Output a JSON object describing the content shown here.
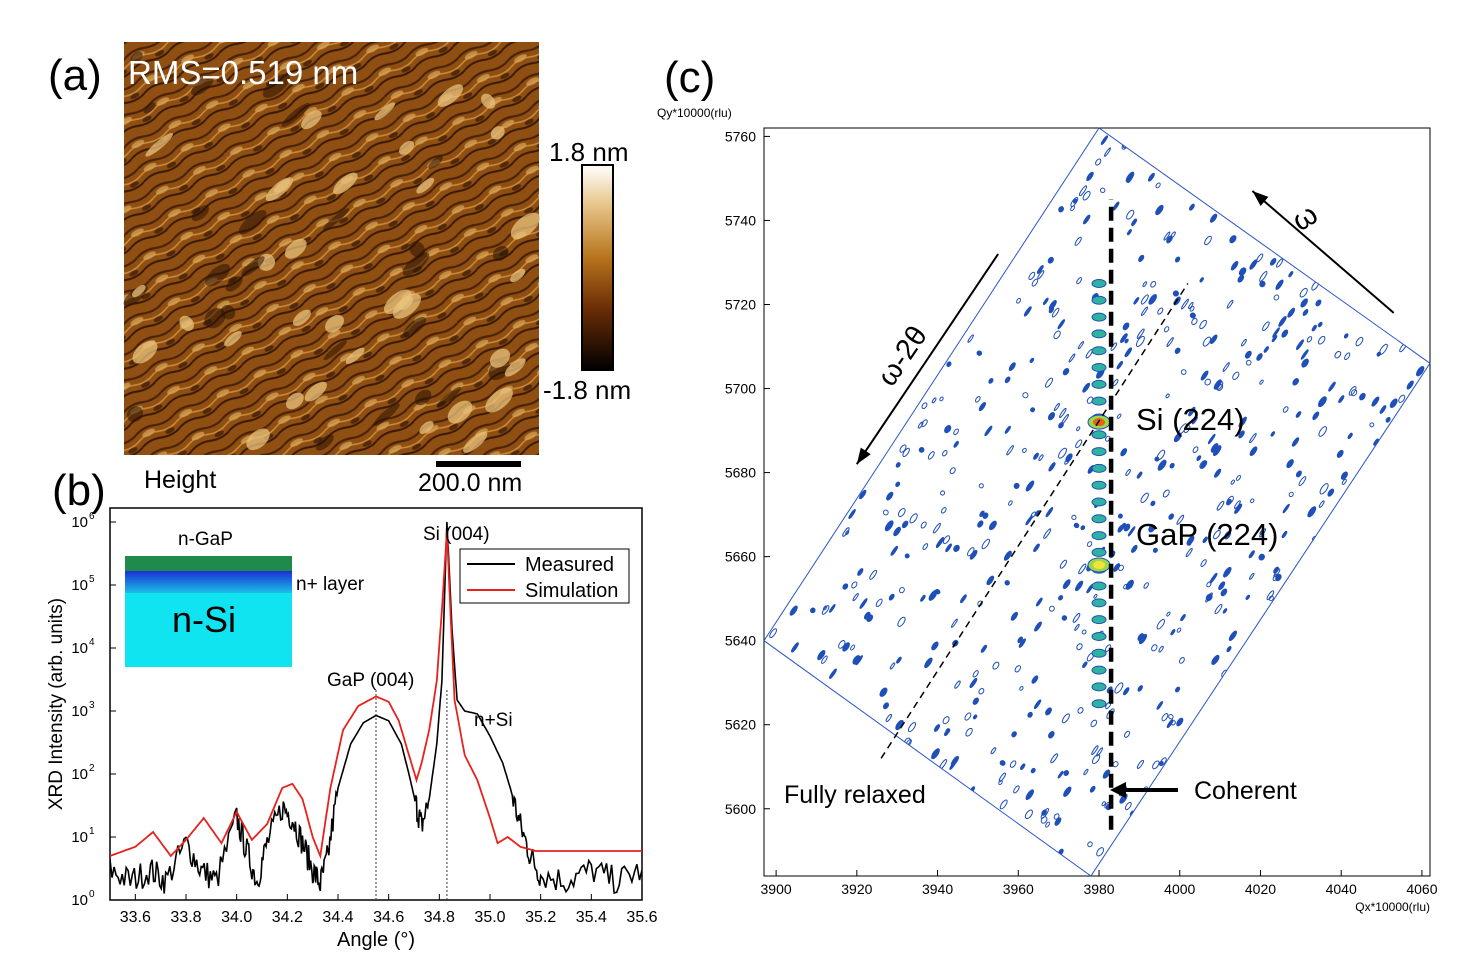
{
  "panel_a": {
    "label": "(a)",
    "rms": "RMS=0.519 nm",
    "colorbar_max": "1.8 nm",
    "colorbar_min": "-1.8 nm",
    "channel": "Height",
    "scalebar": "200.0 nm"
  },
  "panel_b": {
    "label": "(b)",
    "inset": {
      "top_layer": "n-GaP",
      "mid_layer": "n+ layer",
      "substrate": "n-Si"
    },
    "annotations": {
      "si_peak": "Si (004)",
      "gap_peak": "GaP (004)",
      "nsi": "n+Si"
    }
  },
  "panel_c": {
    "label": "(c)",
    "annotations": {
      "omega": "ω",
      "omega_2theta": "ω-2θ",
      "si_peak": "Si (224)",
      "gap_peak": "GaP (224)",
      "fully_relaxed": "Fully relaxed",
      "coherent": "Coherent"
    }
  },
  "colors": {
    "measured": "#000000",
    "simulation": "#e8211c",
    "gap_layer": "#1f8a4c",
    "nplus_layer": "#1a2fd6",
    "si_substrate": "#10e4f0",
    "contour": "#1f4fb8"
  },
  "chart_data": [
    {
      "type": "line",
      "title": "",
      "xlabel": "Angle (°)",
      "ylabel": "XRD Intensity (arb. units)",
      "yscale": "log",
      "xlim": [
        33.5,
        35.6
      ],
      "ylim": [
        1,
        1000000
      ],
      "xticks": [
        33.6,
        33.8,
        34.0,
        34.2,
        34.4,
        34.6,
        34.8,
        35.0,
        35.2,
        35.4,
        35.6
      ],
      "xticklabels": [
        "33.6",
        "33.8",
        "34.0",
        "34.2",
        "34.4",
        "34.6",
        "34.8",
        "35.0",
        "35.2",
        "35.4",
        "35.6"
      ],
      "ytick_exponents": [
        0,
        1,
        2,
        3,
        4,
        5,
        6
      ],
      "legend": {
        "location": "top-right",
        "entries": [
          "Measured",
          "Simulation"
        ]
      },
      "reference_lines": [
        34.55,
        34.83
      ],
      "series": [
        {
          "name": "Measured",
          "x": [
            33.5,
            33.58,
            33.66,
            33.72,
            33.8,
            33.86,
            33.92,
            34.0,
            34.04,
            34.08,
            34.12,
            34.18,
            34.22,
            34.26,
            34.3,
            34.33,
            34.36,
            34.4,
            34.45,
            34.5,
            34.55,
            34.6,
            34.65,
            34.68,
            34.71,
            34.73,
            34.76,
            34.79,
            34.81,
            34.83,
            34.85,
            34.87,
            34.9,
            34.95,
            35.0,
            35.05,
            35.08,
            35.12,
            35.16,
            35.2,
            35.3,
            35.4,
            35.5,
            35.6
          ],
          "y": [
            3,
            2,
            3,
            2,
            8,
            3,
            2,
            20,
            6,
            2,
            8,
            30,
            20,
            8,
            3,
            1.8,
            5,
            60,
            300,
            650,
            850,
            700,
            300,
            100,
            30,
            15,
            40,
            300,
            3000,
            1000000,
            20000,
            1500,
            1000,
            900,
            400,
            150,
            60,
            15,
            5,
            2.5,
            2,
            3,
            2,
            3
          ]
        },
        {
          "name": "Simulation",
          "x": [
            33.5,
            33.6,
            33.67,
            33.74,
            33.8,
            33.87,
            33.94,
            34.0,
            34.06,
            34.12,
            34.18,
            34.22,
            34.26,
            34.3,
            34.33,
            34.37,
            34.42,
            34.48,
            34.55,
            34.6,
            34.64,
            34.68,
            34.71,
            34.73,
            34.76,
            34.79,
            34.81,
            34.83,
            34.845,
            34.86,
            34.9,
            34.95,
            35.0,
            35.03,
            35.07,
            35.12,
            35.18,
            35.3,
            35.4,
            35.5,
            35.6
          ],
          "y": [
            5,
            7,
            12,
            5,
            9,
            20,
            8,
            25,
            9,
            16,
            60,
            70,
            40,
            10,
            5,
            60,
            500,
            1200,
            1700,
            1400,
            700,
            200,
            80,
            150,
            500,
            3000,
            40000,
            700000,
            30000,
            1500,
            200,
            80,
            20,
            8,
            10,
            7,
            6,
            6,
            6,
            6,
            6
          ]
        }
      ]
    },
    {
      "type": "heatmap",
      "subtype": "reciprocal space map (contour)",
      "xlabel": "Qx*10000(rlu)",
      "ylabel": "Qy*10000(rlu)",
      "xlim": [
        3897,
        4062
      ],
      "ylim": [
        5584,
        5762
      ],
      "xticks": [
        3900,
        3920,
        3940,
        3960,
        3980,
        4000,
        4020,
        4040,
        4060
      ],
      "yticks": [
        5600,
        5620,
        5640,
        5660,
        5680,
        5700,
        5720,
        5740,
        5760
      ],
      "scan_region_corners_qx_qy": [
        [
          3978,
          5584
        ],
        [
          3897,
          5640
        ],
        [
          3980,
          5762
        ],
        [
          4062,
          5706
        ]
      ],
      "peaks": [
        {
          "name": "Si (224)",
          "qx": 3980,
          "qy": 5692
        },
        {
          "name": "GaP (224)",
          "qx": 3980,
          "qy": 5658
        }
      ],
      "streak_qx": 3980,
      "streak_qy": [
        5625,
        5725
      ],
      "coherent_line_qx": 3983,
      "coherent_line_qy": [
        5595,
        5745
      ],
      "fully_relaxed_line_qx_qy": [
        [
          3926,
          5612
        ],
        [
          4002,
          5725
        ]
      ],
      "omega_arrow_qx_qy": [
        [
          4053,
          5718
        ],
        [
          4018,
          5747
        ]
      ],
      "omega_2theta_arrow_qx_qy": [
        [
          3955,
          5732
        ],
        [
          3920,
          5682
        ]
      ]
    }
  ]
}
